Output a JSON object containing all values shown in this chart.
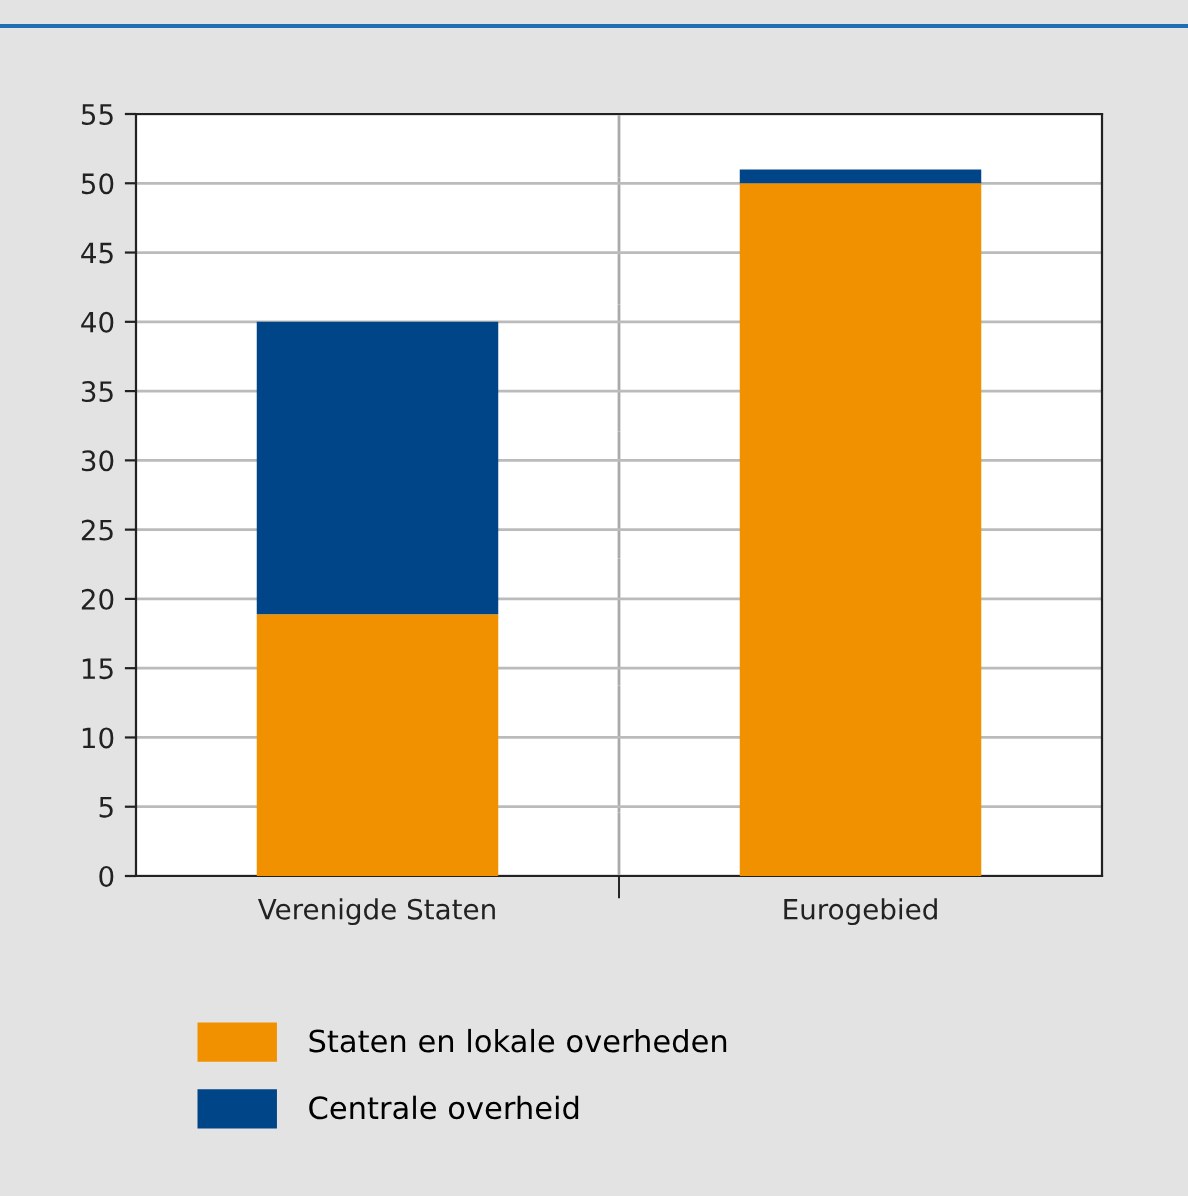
{
  "chart_data": {
    "type": "bar",
    "stacked": true,
    "categories": [
      "Verenigde Staten",
      "Eurogebied"
    ],
    "series": [
      {
        "name": "Staten en lokale overheden",
        "color": "#f29100",
        "values": [
          18.9,
          50
        ]
      },
      {
        "name": "Centrale overheid",
        "color": "#004587",
        "values": [
          21.1,
          1.0
        ]
      }
    ],
    "ylim": [
      0,
      55
    ],
    "yticks": [
      0,
      5,
      10,
      15,
      20,
      25,
      30,
      35,
      40,
      45,
      50,
      55
    ],
    "grid": "y",
    "legend": "bottom left"
  }
}
